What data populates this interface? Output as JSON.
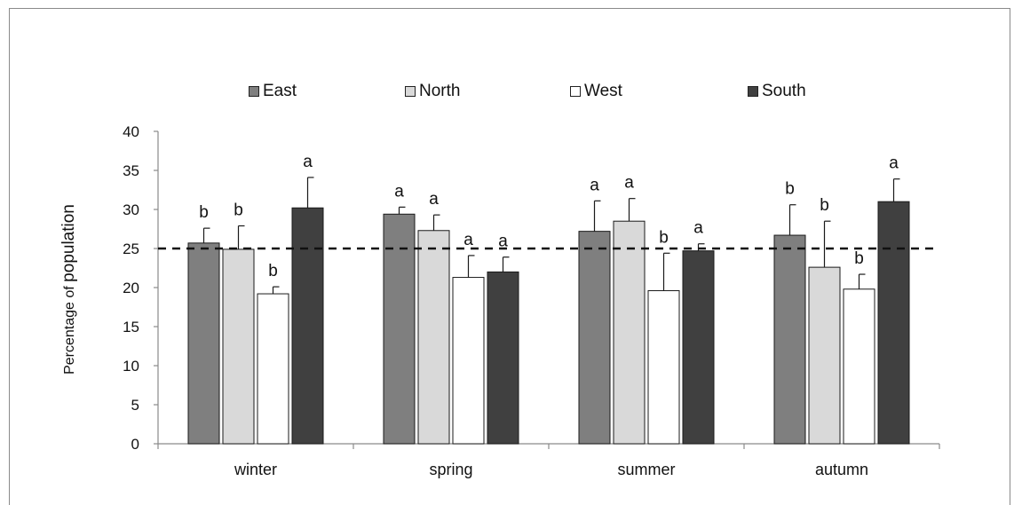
{
  "chart_data": {
    "type": "bar",
    "categories": [
      "winter",
      "spring",
      "summer",
      "autumn"
    ],
    "series": [
      {
        "name": "East",
        "color": "#7f7f7f",
        "values": [
          25.7,
          29.4,
          27.2,
          26.7
        ],
        "errors": [
          1.9,
          0.9,
          3.9,
          3.9
        ],
        "labels": [
          "b",
          "a",
          "a",
          "b"
        ]
      },
      {
        "name": "North",
        "color": "#d9d9d9",
        "values": [
          24.9,
          27.3,
          28.5,
          22.6
        ],
        "errors": [
          3.0,
          2.0,
          2.9,
          5.9
        ],
        "labels": [
          "b",
          "a",
          "a",
          "b"
        ]
      },
      {
        "name": "West",
        "color": "#ffffff",
        "values": [
          19.2,
          21.3,
          19.6,
          19.8
        ],
        "errors": [
          0.9,
          2.8,
          4.8,
          1.9
        ],
        "labels": [
          "b",
          "a",
          "b",
          "b"
        ]
      },
      {
        "name": "South",
        "color": "#404040",
        "values": [
          30.2,
          22.0,
          24.7,
          31.0
        ],
        "errors": [
          3.9,
          1.9,
          0.9,
          2.9
        ],
        "labels": [
          "a",
          "a",
          "a",
          "a"
        ]
      }
    ],
    "ylim": [
      0,
      40
    ],
    "yticks": [
      0,
      5,
      10,
      15,
      20,
      25,
      30,
      35,
      40
    ],
    "reference_line": 25,
    "ylabel_prefix": "Percentage of",
    "ylabel_emphasis": "population",
    "xlabel": "",
    "title": "",
    "legend_position": "top",
    "grid": false
  }
}
